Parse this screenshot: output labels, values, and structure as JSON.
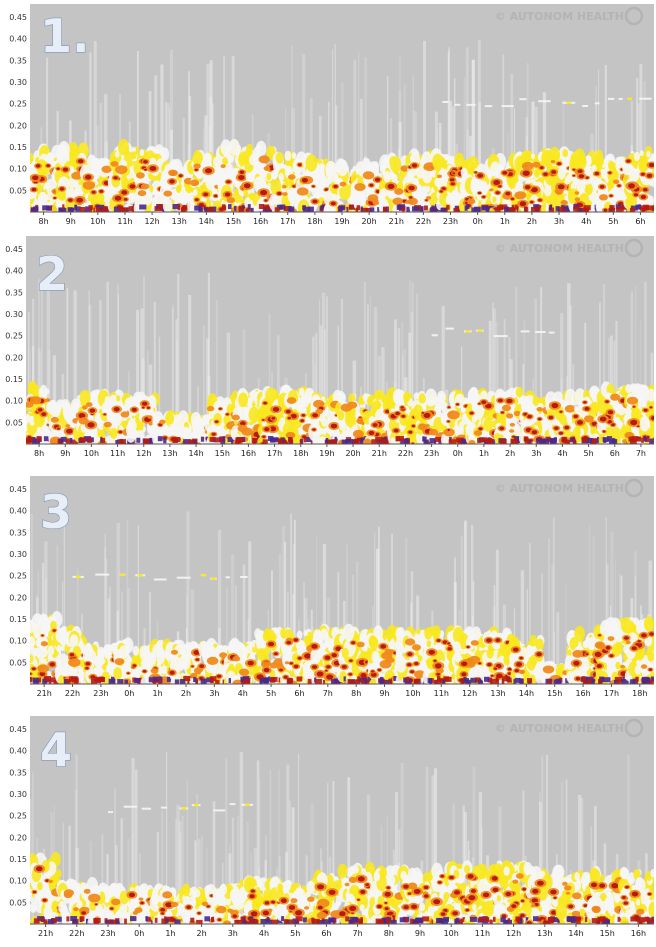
{
  "watermark": "© AUTONOM HEALTH",
  "palette": {
    "background": "#c4c4c4",
    "white": "#f6f6f6",
    "yellow": "#f8e820",
    "orange": "#f08a1c",
    "red": "#b81a10",
    "purple": "#4a2890"
  },
  "chart_data": [
    {
      "type": "heatmap",
      "label": "1.",
      "yticks": [
        "0.45",
        "0.40",
        "0.35",
        "0.30",
        "0.25",
        "0.20",
        "0.15",
        "0.10",
        "0.05"
      ],
      "ylim": [
        0,
        0.48
      ],
      "xticks": [
        "8h",
        "9h",
        "10h",
        "11h",
        "12h",
        "13h",
        "14h",
        "15h",
        "16h",
        "17h",
        "18h",
        "19h",
        "20h",
        "21h",
        "22h",
        "23h",
        "0h",
        "1h",
        "2h",
        "3h",
        "4h",
        "5h",
        "6h"
      ],
      "band_upper": [
        0.14,
        0.15,
        0.12,
        0.15,
        0.14,
        0.11,
        0.13,
        0.15,
        0.15,
        0.13,
        0.12,
        0.11,
        0.11,
        0.12,
        0.13,
        0.12,
        0.11,
        0.12,
        0.13,
        0.14,
        0.13,
        0.12,
        0.14
      ],
      "band_intensity": [
        0.8,
        0.8,
        0.75,
        0.75,
        0.7,
        0.6,
        0.8,
        0.8,
        0.6,
        0.55,
        0.55,
        0.5,
        0.6,
        0.65,
        0.75,
        0.75,
        0.8,
        0.85,
        0.85,
        0.85,
        0.8,
        0.75,
        0.85
      ],
      "hf_trace": [
        {
          "x0": 15.2,
          "x1": 22.5,
          "y": 0.255
        }
      ]
    },
    {
      "type": "heatmap",
      "label": "2",
      "yticks": [
        "0.45",
        "0.40",
        "0.35",
        "0.30",
        "0.25",
        "0.20",
        "0.15",
        "0.10",
        "0.05"
      ],
      "ylim": [
        0,
        0.48
      ],
      "xticks": [
        "8h",
        "9h",
        "10h",
        "11h",
        "12h",
        "13h",
        "14h",
        "15h",
        "16h",
        "17h",
        "18h",
        "19h",
        "20h",
        "21h",
        "22h",
        "23h",
        "0h",
        "1h",
        "2h",
        "3h",
        "4h",
        "5h",
        "6h",
        "7h"
      ],
      "band_upper": [
        0.13,
        0.09,
        0.11,
        0.11,
        0.11,
        0.06,
        0.06,
        0.1,
        0.12,
        0.12,
        0.12,
        0.11,
        0.11,
        0.12,
        0.11,
        0.11,
        0.11,
        0.12,
        0.12,
        0.11,
        0.11,
        0.12,
        0.13,
        0.13
      ],
      "band_intensity": [
        0.75,
        0.55,
        0.6,
        0.6,
        0.55,
        0.3,
        0.35,
        0.6,
        0.7,
        0.7,
        0.7,
        0.65,
        0.7,
        0.7,
        0.7,
        0.7,
        0.7,
        0.75,
        0.75,
        0.7,
        0.7,
        0.75,
        0.8,
        0.8
      ],
      "hf_trace": [
        {
          "x0": 15.5,
          "x1": 20.5,
          "y": 0.26
        }
      ]
    },
    {
      "type": "heatmap",
      "label": "3",
      "yticks": [
        "0.45",
        "0.40",
        "0.35",
        "0.30",
        "0.25",
        "0.20",
        "0.15",
        "0.10",
        "0.05"
      ],
      "ylim": [
        0,
        0.48
      ],
      "xticks": [
        "21h",
        "22h",
        "23h",
        "0h",
        "1h",
        "2h",
        "3h",
        "4h",
        "5h",
        "6h",
        "7h",
        "8h",
        "9h",
        "10h",
        "11h",
        "12h",
        "13h",
        "14h",
        "15h",
        "16h",
        "17h",
        "18h"
      ],
      "band_upper": [
        0.15,
        0.12,
        0.09,
        0.09,
        0.09,
        0.09,
        0.09,
        0.09,
        0.12,
        0.12,
        0.12,
        0.12,
        0.12,
        0.12,
        0.12,
        0.12,
        0.12,
        0.1,
        0.04,
        0.12,
        0.14,
        0.14
      ],
      "band_intensity": [
        0.8,
        0.6,
        0.5,
        0.5,
        0.5,
        0.55,
        0.55,
        0.55,
        0.75,
        0.8,
        0.8,
        0.8,
        0.75,
        0.75,
        0.75,
        0.75,
        0.75,
        0.6,
        0.2,
        0.8,
        0.85,
        0.85
      ],
      "hf_trace": [
        {
          "x0": 1.5,
          "x1": 7.5,
          "y": 0.25
        }
      ]
    },
    {
      "type": "heatmap",
      "label": "4",
      "yticks": [
        "0.45",
        "0.40",
        "0.35",
        "0.30",
        "0.25",
        "0.20",
        "0.15",
        "0.10",
        "0.05"
      ],
      "ylim": [
        0,
        0.48
      ],
      "xticks": [
        "21h",
        "22h",
        "23h",
        "0h",
        "1h",
        "2h",
        "3h",
        "4h",
        "5h",
        "6h",
        "7h",
        "8h",
        "9h",
        "10h",
        "11h",
        "12h",
        "13h",
        "14h",
        "15h",
        "16h"
      ],
      "band_upper": [
        0.15,
        0.09,
        0.08,
        0.08,
        0.08,
        0.08,
        0.09,
        0.1,
        0.09,
        0.11,
        0.13,
        0.12,
        0.12,
        0.13,
        0.13,
        0.14,
        0.12,
        0.11,
        0.12,
        0.12
      ],
      "band_intensity": [
        0.7,
        0.45,
        0.5,
        0.5,
        0.5,
        0.5,
        0.55,
        0.7,
        0.55,
        0.7,
        0.8,
        0.8,
        0.75,
        0.8,
        0.85,
        0.9,
        0.75,
        0.7,
        0.75,
        0.75
      ],
      "hf_trace": [
        {
          "x0": 2.5,
          "x1": 7.0,
          "y": 0.27
        }
      ]
    }
  ]
}
